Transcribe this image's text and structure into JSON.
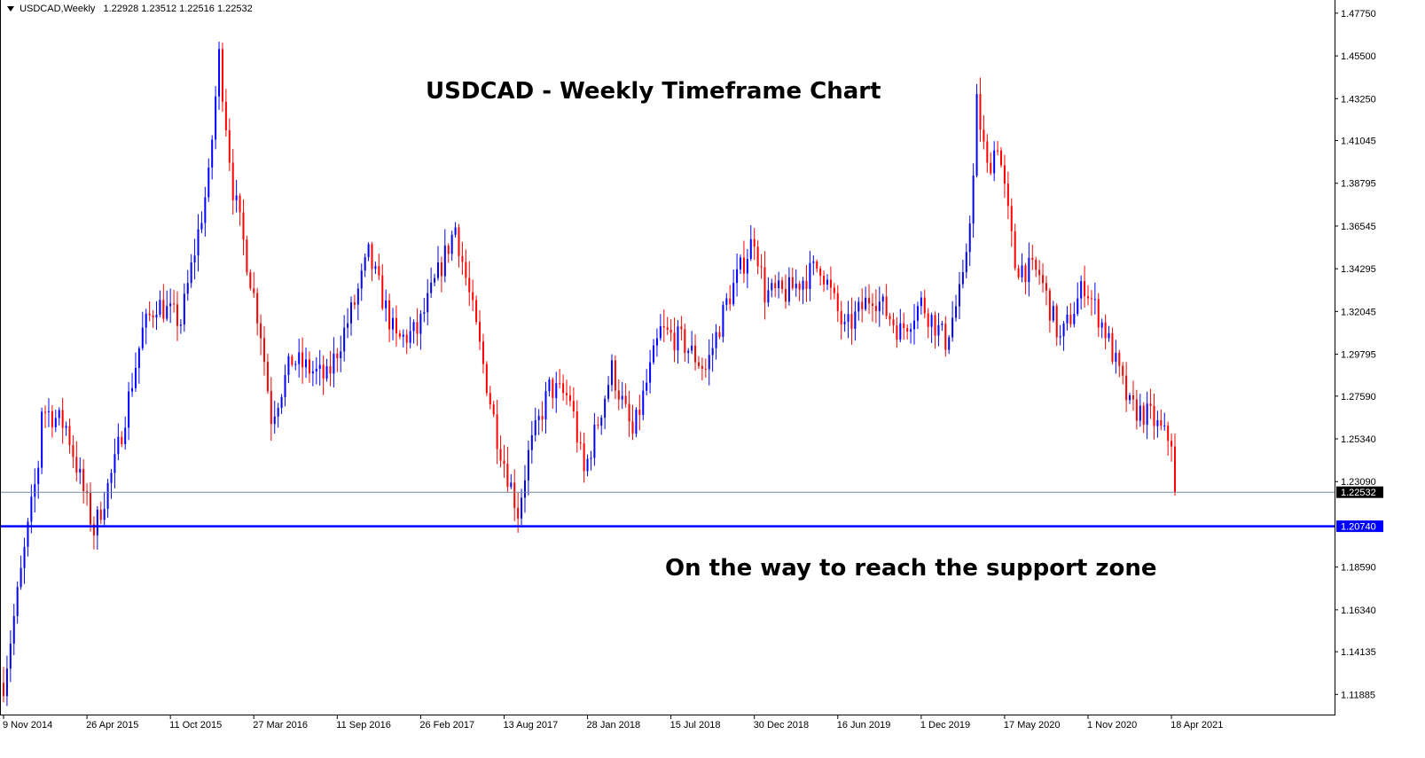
{
  "header": {
    "symbol": "USDCAD,Weekly",
    "ohlc": "1.22928 1.23512 1.22516 1.22532"
  },
  "annotations": {
    "title": "USDCAD - Weekly Timeframe Chart",
    "support_note": "On the way to reach the support zone"
  },
  "colors": {
    "bull": "#0000ff",
    "bear": "#ff0000",
    "wick": "#000000",
    "support_line": "#0000ff",
    "price_line": "#778899",
    "price_badge_bg": "#000000",
    "support_badge_bg": "#0000ff"
  },
  "chart_data": {
    "type": "candlestick",
    "symbol": "USDCAD",
    "timeframe": "Weekly",
    "grid": false,
    "ylim": [
      1.1092,
      1.4835
    ],
    "y_ticks": [
      "1.47750",
      "1.45500",
      "1.43250",
      "1.41045",
      "1.38795",
      "1.36545",
      "1.34295",
      "1.32045",
      "1.29795",
      "1.27590",
      "1.25340",
      "1.23090",
      "1.18590",
      "1.16340",
      "1.14135",
      "1.11885"
    ],
    "x_ticks": [
      "9 Nov 2014",
      "26 Apr 2015",
      "11 Oct 2015",
      "27 Mar 2016",
      "11 Sep 2016",
      "26 Feb 2017",
      "13 Aug 2017",
      "28 Jan 2018",
      "15 Jul 2018",
      "30 Dec 2018",
      "16 Jun 2019",
      "1 Dec 2019",
      "17 May 2020",
      "1 Nov 2020",
      "18 Apr 2021"
    ],
    "current_price": "1.22532",
    "support_level": "1.20740",
    "close_path": [
      {
        "date": "2014-11-09",
        "close": 1.125
      },
      {
        "date": "2015-01-18",
        "close": 1.24
      },
      {
        "date": "2015-01-25",
        "close": 1.27
      },
      {
        "date": "2015-03-15",
        "close": 1.26
      },
      {
        "date": "2015-05-10",
        "close": 1.205
      },
      {
        "date": "2015-06-21",
        "close": 1.24
      },
      {
        "date": "2015-08-16",
        "close": 1.31
      },
      {
        "date": "2015-09-13",
        "close": 1.325
      },
      {
        "date": "2015-11-01",
        "close": 1.315
      },
      {
        "date": "2015-12-27",
        "close": 1.39
      },
      {
        "date": "2016-01-17",
        "close": 1.455
      },
      {
        "date": "2016-02-14",
        "close": 1.385
      },
      {
        "date": "2016-04-10",
        "close": 1.31
      },
      {
        "date": "2016-05-01",
        "close": 1.265
      },
      {
        "date": "2016-06-12",
        "close": 1.295
      },
      {
        "date": "2016-08-21",
        "close": 1.285
      },
      {
        "date": "2016-10-16",
        "close": 1.325
      },
      {
        "date": "2016-11-13",
        "close": 1.35
      },
      {
        "date": "2017-01-08",
        "close": 1.305
      },
      {
        "date": "2017-02-19",
        "close": 1.31
      },
      {
        "date": "2017-05-07",
        "close": 1.365
      },
      {
        "date": "2017-06-11",
        "close": 1.32
      },
      {
        "date": "2017-07-30",
        "close": 1.255
      },
      {
        "date": "2017-09-10",
        "close": 1.215
      },
      {
        "date": "2017-10-01",
        "close": 1.245
      },
      {
        "date": "2017-11-12",
        "close": 1.28
      },
      {
        "date": "2017-12-24",
        "close": 1.275
      },
      {
        "date": "2018-01-21",
        "close": 1.235
      },
      {
        "date": "2018-03-18",
        "close": 1.29
      },
      {
        "date": "2018-04-29",
        "close": 1.255
      },
      {
        "date": "2018-06-24",
        "close": 1.31
      },
      {
        "date": "2018-08-05",
        "close": 1.305
      },
      {
        "date": "2018-09-23",
        "close": 1.29
      },
      {
        "date": "2018-11-04",
        "close": 1.325
      },
      {
        "date": "2018-12-30",
        "close": 1.36
      },
      {
        "date": "2019-01-20",
        "close": 1.33
      },
      {
        "date": "2019-03-03",
        "close": 1.33
      },
      {
        "date": "2019-05-12",
        "close": 1.345
      },
      {
        "date": "2019-06-30",
        "close": 1.31
      },
      {
        "date": "2019-08-25",
        "close": 1.33
      },
      {
        "date": "2019-10-20",
        "close": 1.31
      },
      {
        "date": "2019-12-01",
        "close": 1.325
      },
      {
        "date": "2020-01-19",
        "close": 1.305
      },
      {
        "date": "2020-02-23",
        "close": 1.335
      },
      {
        "date": "2020-03-15",
        "close": 1.39
      },
      {
        "date": "2020-03-22",
        "close": 1.43
      },
      {
        "date": "2020-04-12",
        "close": 1.395
      },
      {
        "date": "2020-05-03",
        "close": 1.41
      },
      {
        "date": "2020-06-07",
        "close": 1.345
      },
      {
        "date": "2020-07-26",
        "close": 1.34
      },
      {
        "date": "2020-09-06",
        "close": 1.305
      },
      {
        "date": "2020-10-25",
        "close": 1.335
      },
      {
        "date": "2020-12-06",
        "close": 1.31
      },
      {
        "date": "2021-01-24",
        "close": 1.27
      },
      {
        "date": "2021-03-07",
        "close": 1.265
      },
      {
        "date": "2021-04-04",
        "close": 1.255
      },
      {
        "date": "2021-04-25",
        "close": 1.2525
      }
    ]
  }
}
